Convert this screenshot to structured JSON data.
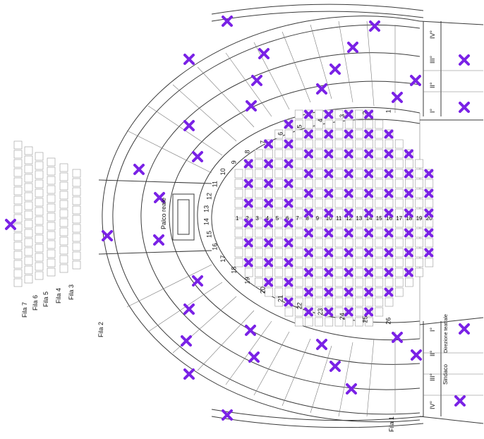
{
  "palette": {
    "mark": "#7a22e6",
    "line": "#3a3a3a",
    "seat_border": "#9a9a9a"
  },
  "labels": {
    "fila7": "Fila 7",
    "fila6": "Fila 6",
    "fila5": "Fila 5",
    "fila4": "Fila 4",
    "fila3": "Fila 3",
    "fila2": "Fila 2",
    "fila1": "Fila 1",
    "palco_reale": "Palco reale",
    "sindaco": "Sindaco",
    "direzione": "Direzione teatrale",
    "tier_I": "I°",
    "tier_II": "II°",
    "tier_III": "III°",
    "tier_IV": "IV°"
  },
  "box_numbers": [
    "1",
    "2",
    "3",
    "4",
    "5",
    "6",
    "7",
    "8",
    "9",
    "10",
    "11",
    "12",
    "13",
    "14",
    "15",
    "16",
    "17",
    "18",
    "19",
    "20",
    "21",
    "22",
    "23",
    "24",
    "25",
    "26"
  ],
  "stall_columns": [
    "1",
    "2",
    "3",
    "4",
    "5",
    "6",
    "7",
    "8",
    "9",
    "10",
    "11",
    "12",
    "13",
    "14",
    "15",
    "16",
    "17",
    "18",
    "19",
    "20"
  ],
  "mark_symbol": "✖"
}
